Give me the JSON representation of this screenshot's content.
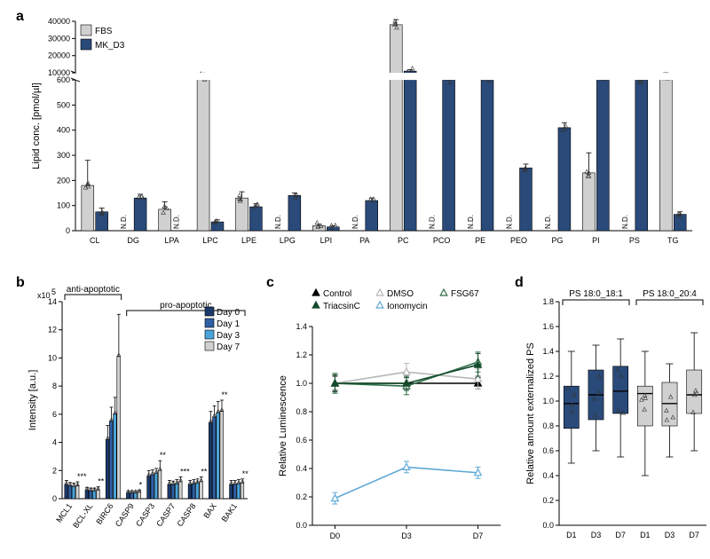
{
  "palette": {
    "fbs": "#d0d0d0",
    "mkd3": "#2a4a7a",
    "day0": "#1b3a6b",
    "day1": "#2f5fa3",
    "day3": "#4aa4d9",
    "day7": "#d0d0d0",
    "control": "#000000",
    "dmso": "#b7b7b7",
    "fsg67": "#2e6e47",
    "triacsinc": "#134a2b",
    "ionomycin": "#5ea9d6",
    "box_blue": "#2a4a7a",
    "box_gray": "#d0d0d0"
  },
  "panel_a": {
    "label": "a",
    "ylabel": "Lipid conc. [pmol/µl]",
    "legend": [
      {
        "key": "fbs",
        "label": "FBS"
      },
      {
        "key": "mkd3",
        "label": "MK_D3"
      }
    ],
    "lower": {
      "min": 0,
      "max": 600,
      "ticks": [
        0,
        100,
        200,
        300,
        400,
        500,
        600
      ]
    },
    "upper": {
      "min": 10000,
      "max": 40000,
      "ticks": [
        10000,
        20000,
        30000,
        40000
      ]
    },
    "categories": [
      "CL",
      "DG",
      "LPA",
      "LPC",
      "LPE",
      "LPG",
      "LPI",
      "PA",
      "PC",
      "PCO",
      "PE",
      "PEO",
      "PG",
      "PI",
      "PS",
      "TG"
    ],
    "values": {
      "CL": {
        "fbs": 180,
        "mkd3": 75,
        "fbs_err": 100,
        "mkd3_err": 15
      },
      "DG": {
        "fbs": null,
        "mkd3": 130,
        "mkd3_err": 15
      },
      "LPA": {
        "fbs": 85,
        "mkd3": null,
        "fbs_err": 30
      },
      "LPC": {
        "fbs": 8000,
        "mkd3": 35,
        "fbs_err": 400,
        "mkd3_err": 8,
        "fbs_upper": true
      },
      "LPE": {
        "fbs": 130,
        "mkd3": 95,
        "fbs_err": 25,
        "mkd3_err": 12
      },
      "LPG": {
        "fbs": null,
        "mkd3": 140,
        "mkd3_err": 10
      },
      "LPI": {
        "fbs": 20,
        "mkd3": 15,
        "fbs_err": 6,
        "mkd3_err": 4
      },
      "PA": {
        "fbs": null,
        "mkd3": 120,
        "mkd3_err": 10
      },
      "PC": {
        "fbs": 38000,
        "mkd3": 11000,
        "fbs_err": 3000,
        "mkd3_err": 800,
        "fbs_upper": true,
        "mkd3_upper": true
      },
      "PCO": {
        "fbs": null,
        "mkd3": 600,
        "mkd3_err": 20
      },
      "PE": {
        "fbs": null,
        "mkd3": 600,
        "mkd3_err": 30
      },
      "PEO": {
        "fbs": null,
        "mkd3": 250,
        "mkd3_err": 15
      },
      "PG": {
        "fbs": null,
        "mkd3": 410,
        "mkd3_err": 20
      },
      "PI": {
        "fbs": 230,
        "mkd3": 600,
        "fbs_err": 80,
        "mkd3_err": 25
      },
      "PS": {
        "fbs": null,
        "mkd3": 600,
        "mkd3_err": 25
      },
      "TG": {
        "fbs": 8000,
        "mkd3": 65,
        "fbs_err": 2000,
        "mkd3_err": 10,
        "fbs_upper": true
      }
    },
    "nd_text": "N.D."
  },
  "panel_b": {
    "label": "b",
    "ylabel": "Intensity [a.u.]",
    "yscale_text": "x10",
    "yscale_sup": "5",
    "ylim": [
      0,
      14
    ],
    "yticks": [
      0,
      2,
      4,
      6,
      8,
      10,
      12,
      14
    ],
    "legend": [
      {
        "key": "day0",
        "label": "Day 0"
      },
      {
        "key": "day1",
        "label": "Day 1"
      },
      {
        "key": "day3",
        "label": "Day 3"
      },
      {
        "key": "day7",
        "label": "Day 7"
      }
    ],
    "groups": [
      {
        "name": "MCL1",
        "vals": [
          1.0,
          0.9,
          0.85,
          0.9
        ],
        "err": [
          0.3,
          0.25,
          0.25,
          0.3
        ],
        "stars": "***"
      },
      {
        "name": "BCL-XL",
        "vals": [
          0.6,
          0.55,
          0.55,
          0.6
        ],
        "err": [
          0.2,
          0.2,
          0.2,
          0.25
        ],
        "stars": "**"
      },
      {
        "name": "BIRC6",
        "vals": [
          4.2,
          5.5,
          6.0,
          10.1
        ],
        "err": [
          1.0,
          1.0,
          1.2,
          3.0
        ],
        "stars": ""
      },
      {
        "name": "CASP9",
        "vals": [
          0.4,
          0.4,
          0.4,
          0.45
        ],
        "err": [
          0.15,
          0.15,
          0.15,
          0.15
        ],
        "stars": "*"
      },
      {
        "name": "CASP3",
        "vals": [
          1.6,
          1.7,
          1.8,
          2.0
        ],
        "err": [
          0.4,
          0.35,
          0.35,
          0.7
        ],
        "stars": "**"
      },
      {
        "name": "CASP7",
        "vals": [
          1.0,
          1.0,
          1.05,
          1.2
        ],
        "err": [
          0.3,
          0.25,
          0.3,
          0.35
        ],
        "stars": "***"
      },
      {
        "name": "CASP8",
        "vals": [
          1.0,
          1.05,
          1.1,
          1.2
        ],
        "err": [
          0.3,
          0.3,
          0.3,
          0.35
        ],
        "stars": "**"
      },
      {
        "name": "BAX",
        "vals": [
          5.4,
          5.8,
          6.1,
          6.2
        ],
        "err": [
          0.8,
          0.8,
          0.8,
          0.8
        ],
        "stars": "**"
      },
      {
        "name": "BAK1",
        "vals": [
          1.0,
          1.0,
          1.05,
          1.1
        ],
        "err": [
          0.3,
          0.3,
          0.3,
          0.3
        ],
        "stars": "**"
      }
    ],
    "brackets": {
      "anti": {
        "label": "anti-apoptotic",
        "from": 0,
        "to": 2
      },
      "pro": {
        "label": "pro-apoptotic",
        "from": 3,
        "to": 8
      }
    }
  },
  "panel_c": {
    "label": "c",
    "ylabel": "Relative Luminescence",
    "xcats": [
      "D0",
      "D3",
      "D7"
    ],
    "ylim": [
      0,
      1.4
    ],
    "yticks": [
      0,
      0.2,
      0.4,
      0.6,
      0.8,
      1.0,
      1.2,
      1.4
    ],
    "series": [
      {
        "key": "control",
        "label": "Control",
        "vals": [
          1.0,
          1.0,
          1.0
        ],
        "err": [
          0.05,
          0.04,
          0.04
        ],
        "marker": "tri-filled"
      },
      {
        "key": "dmso",
        "label": "DMSO",
        "vals": [
          1.0,
          1.08,
          1.03
        ],
        "err": [
          0.06,
          0.06,
          0.07
        ],
        "marker": "tri-open"
      },
      {
        "key": "fsg67",
        "label": "FSG67",
        "vals": [
          1.0,
          0.98,
          1.15
        ],
        "err": [
          0.07,
          0.06,
          0.07
        ],
        "marker": "tri-open"
      },
      {
        "key": "triacsinc",
        "label": "TriacsinC",
        "vals": [
          1.0,
          1.0,
          1.13
        ],
        "err": [
          0.06,
          0.05,
          0.08
        ],
        "marker": "tri-filled"
      },
      {
        "key": "ionomycin",
        "label": "Ionomycin",
        "vals": [
          0.19,
          0.41,
          0.37
        ],
        "err": [
          0.04,
          0.04,
          0.04
        ],
        "marker": "tri-open"
      }
    ]
  },
  "panel_d": {
    "label": "d",
    "ylabel": "Relative amount externalized PS",
    "xcats": [
      "D1",
      "D3",
      "D7",
      "D1",
      "D3",
      "D7"
    ],
    "ylim": [
      0,
      1.8
    ],
    "yticks": [
      0,
      0.2,
      0.4,
      0.6,
      0.8,
      1.0,
      1.2,
      1.4,
      1.6,
      1.8
    ],
    "titles": [
      "PS 18:0_18:1",
      "PS 18:0_20:4"
    ],
    "boxes": [
      {
        "color": "box_blue",
        "q1": 0.78,
        "med": 0.98,
        "q3": 1.12,
        "lo": 0.5,
        "hi": 1.4
      },
      {
        "color": "box_blue",
        "q1": 0.85,
        "med": 1.05,
        "q3": 1.25,
        "lo": 0.6,
        "hi": 1.45
      },
      {
        "color": "box_blue",
        "q1": 0.9,
        "med": 1.08,
        "q3": 1.28,
        "lo": 0.55,
        "hi": 1.5
      },
      {
        "color": "box_gray",
        "q1": 0.8,
        "med": 1.06,
        "q3": 1.12,
        "lo": 0.4,
        "hi": 1.4
      },
      {
        "color": "box_gray",
        "q1": 0.8,
        "med": 0.98,
        "q3": 1.15,
        "lo": 0.55,
        "hi": 1.3
      },
      {
        "color": "box_gray",
        "q1": 0.9,
        "med": 1.05,
        "q3": 1.25,
        "lo": 0.6,
        "hi": 1.55
      }
    ]
  }
}
